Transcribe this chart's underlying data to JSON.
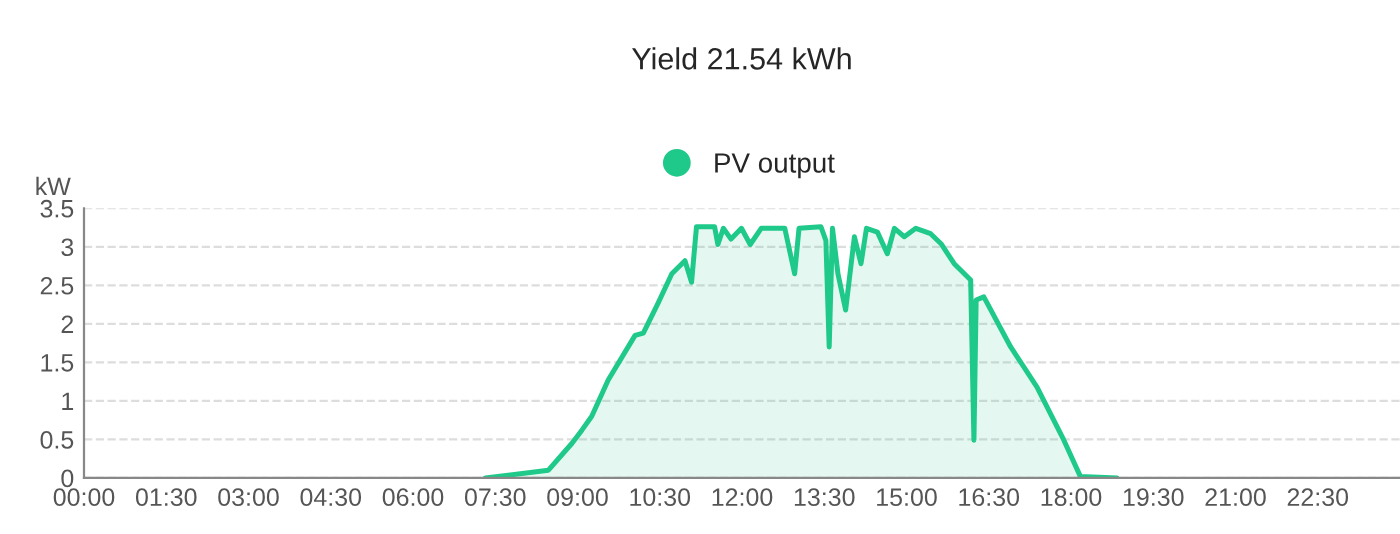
{
  "chart_data": {
    "type": "area",
    "title": "Yield 21.54 kWh",
    "ylabel": "kW",
    "legend": "top",
    "x": [
      7.32,
      8.47,
      8.9,
      9.08,
      9.26,
      9.56,
      10.05,
      10.2,
      10.47,
      10.72,
      10.96,
      11.08,
      11.17,
      11.5,
      11.56,
      11.66,
      11.8,
      11.99,
      12.15,
      12.35,
      12.78,
      12.96,
      13.04,
      13.44,
      13.53,
      13.59,
      13.65,
      13.75,
      13.89,
      14.05,
      14.17,
      14.27,
      14.47,
      14.65,
      14.78,
      14.96,
      15.17,
      15.44,
      15.63,
      15.87,
      16.17,
      16.23,
      16.27,
      16.41,
      16.9,
      17.38,
      17.87,
      18.17,
      18.84
    ],
    "series": [
      {
        "name": "PV output",
        "color": "#1ec98a",
        "values": [
          0,
          0.1,
          0.45,
          0.62,
          0.8,
          1.27,
          1.85,
          1.88,
          2.27,
          2.65,
          2.82,
          2.54,
          3.26,
          3.26,
          3.03,
          3.24,
          3.1,
          3.24,
          3.03,
          3.24,
          3.24,
          2.65,
          3.24,
          3.26,
          3.08,
          1.7,
          3.24,
          2.65,
          2.18,
          3.13,
          2.78,
          3.24,
          3.19,
          2.91,
          3.24,
          3.13,
          3.24,
          3.17,
          3.04,
          2.78,
          2.57,
          0.49,
          2.31,
          2.35,
          1.7,
          1.18,
          0.49,
          0.02,
          0
        ]
      }
    ],
    "xlim": [
      0,
      24
    ],
    "xticks": [
      {
        "value": 0,
        "label": "00:00"
      },
      {
        "value": 1.5,
        "label": "01:30"
      },
      {
        "value": 3,
        "label": "03:00"
      },
      {
        "value": 4.5,
        "label": "04:30"
      },
      {
        "value": 6,
        "label": "06:00"
      },
      {
        "value": 7.5,
        "label": "07:30"
      },
      {
        "value": 9,
        "label": "09:00"
      },
      {
        "value": 10.5,
        "label": "10:30"
      },
      {
        "value": 12,
        "label": "12:00"
      },
      {
        "value": 13.5,
        "label": "13:30"
      },
      {
        "value": 15,
        "label": "15:00"
      },
      {
        "value": 16.5,
        "label": "16:30"
      },
      {
        "value": 18,
        "label": "18:00"
      },
      {
        "value": 19.5,
        "label": "19:30"
      },
      {
        "value": 21,
        "label": "21:00"
      },
      {
        "value": 22.5,
        "label": "22:30"
      }
    ],
    "ylim": [
      0,
      3.5
    ],
    "yticks": [
      0,
      0.5,
      1,
      1.5,
      2,
      2.5,
      3,
      3.5
    ],
    "grid": "y"
  }
}
